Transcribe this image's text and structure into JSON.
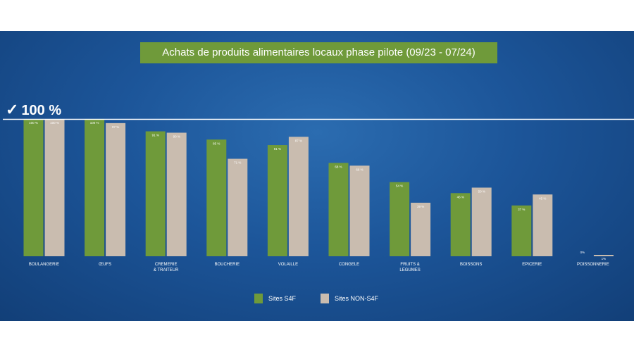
{
  "title": "Achats de produits alimentaires locaux phase pilote (09/23 - 07/24)",
  "reference_label": "100 %",
  "check_icon": "check-icon",
  "colors": {
    "s4f": "#6f9a3a",
    "non_s4f": "#c9bcaf",
    "reference_line": "#ffffff",
    "text": "#ffffff"
  },
  "chart_data": {
    "type": "bar",
    "title": "Achats de produits alimentaires locaux phase pilote (09/23 - 07/24)",
    "xlabel": "",
    "ylabel": "",
    "ylim": [
      0,
      100
    ],
    "reference_line": 100,
    "grid": false,
    "legend_position": "bottom",
    "categories": [
      [
        "BOULANGERIE"
      ],
      [
        "ŒUFS"
      ],
      [
        "CREMERIE",
        "& TRAITEUR"
      ],
      [
        "BOUCHERIE"
      ],
      [
        "VOLAILLE"
      ],
      [
        "CONGELE"
      ],
      [
        "FRUITS &",
        "LEGUMES"
      ],
      [
        "BOISSONS"
      ],
      [
        "EPICERIE"
      ],
      [
        "POISSONNERIE"
      ]
    ],
    "series": [
      {
        "name": "Sites S4F",
        "values": [
          100,
          100,
          91,
          85,
          81,
          68,
          54,
          46,
          37,
          0
        ],
        "labels": [
          "100 %",
          "100 %",
          "91 %",
          "85 %",
          "81 %",
          "68 %",
          "54 %",
          "46 %",
          "37 %",
          "0%"
        ]
      },
      {
        "name": "Sites NON-S4F",
        "values": [
          100,
          97,
          90,
          71,
          87,
          66,
          39,
          50,
          45,
          1
        ],
        "labels": [
          "100 %",
          "97 %",
          "90 %",
          "71 %",
          "87 %",
          "66 %",
          "39 %",
          "50 %",
          "45 %",
          "1%"
        ]
      }
    ]
  }
}
